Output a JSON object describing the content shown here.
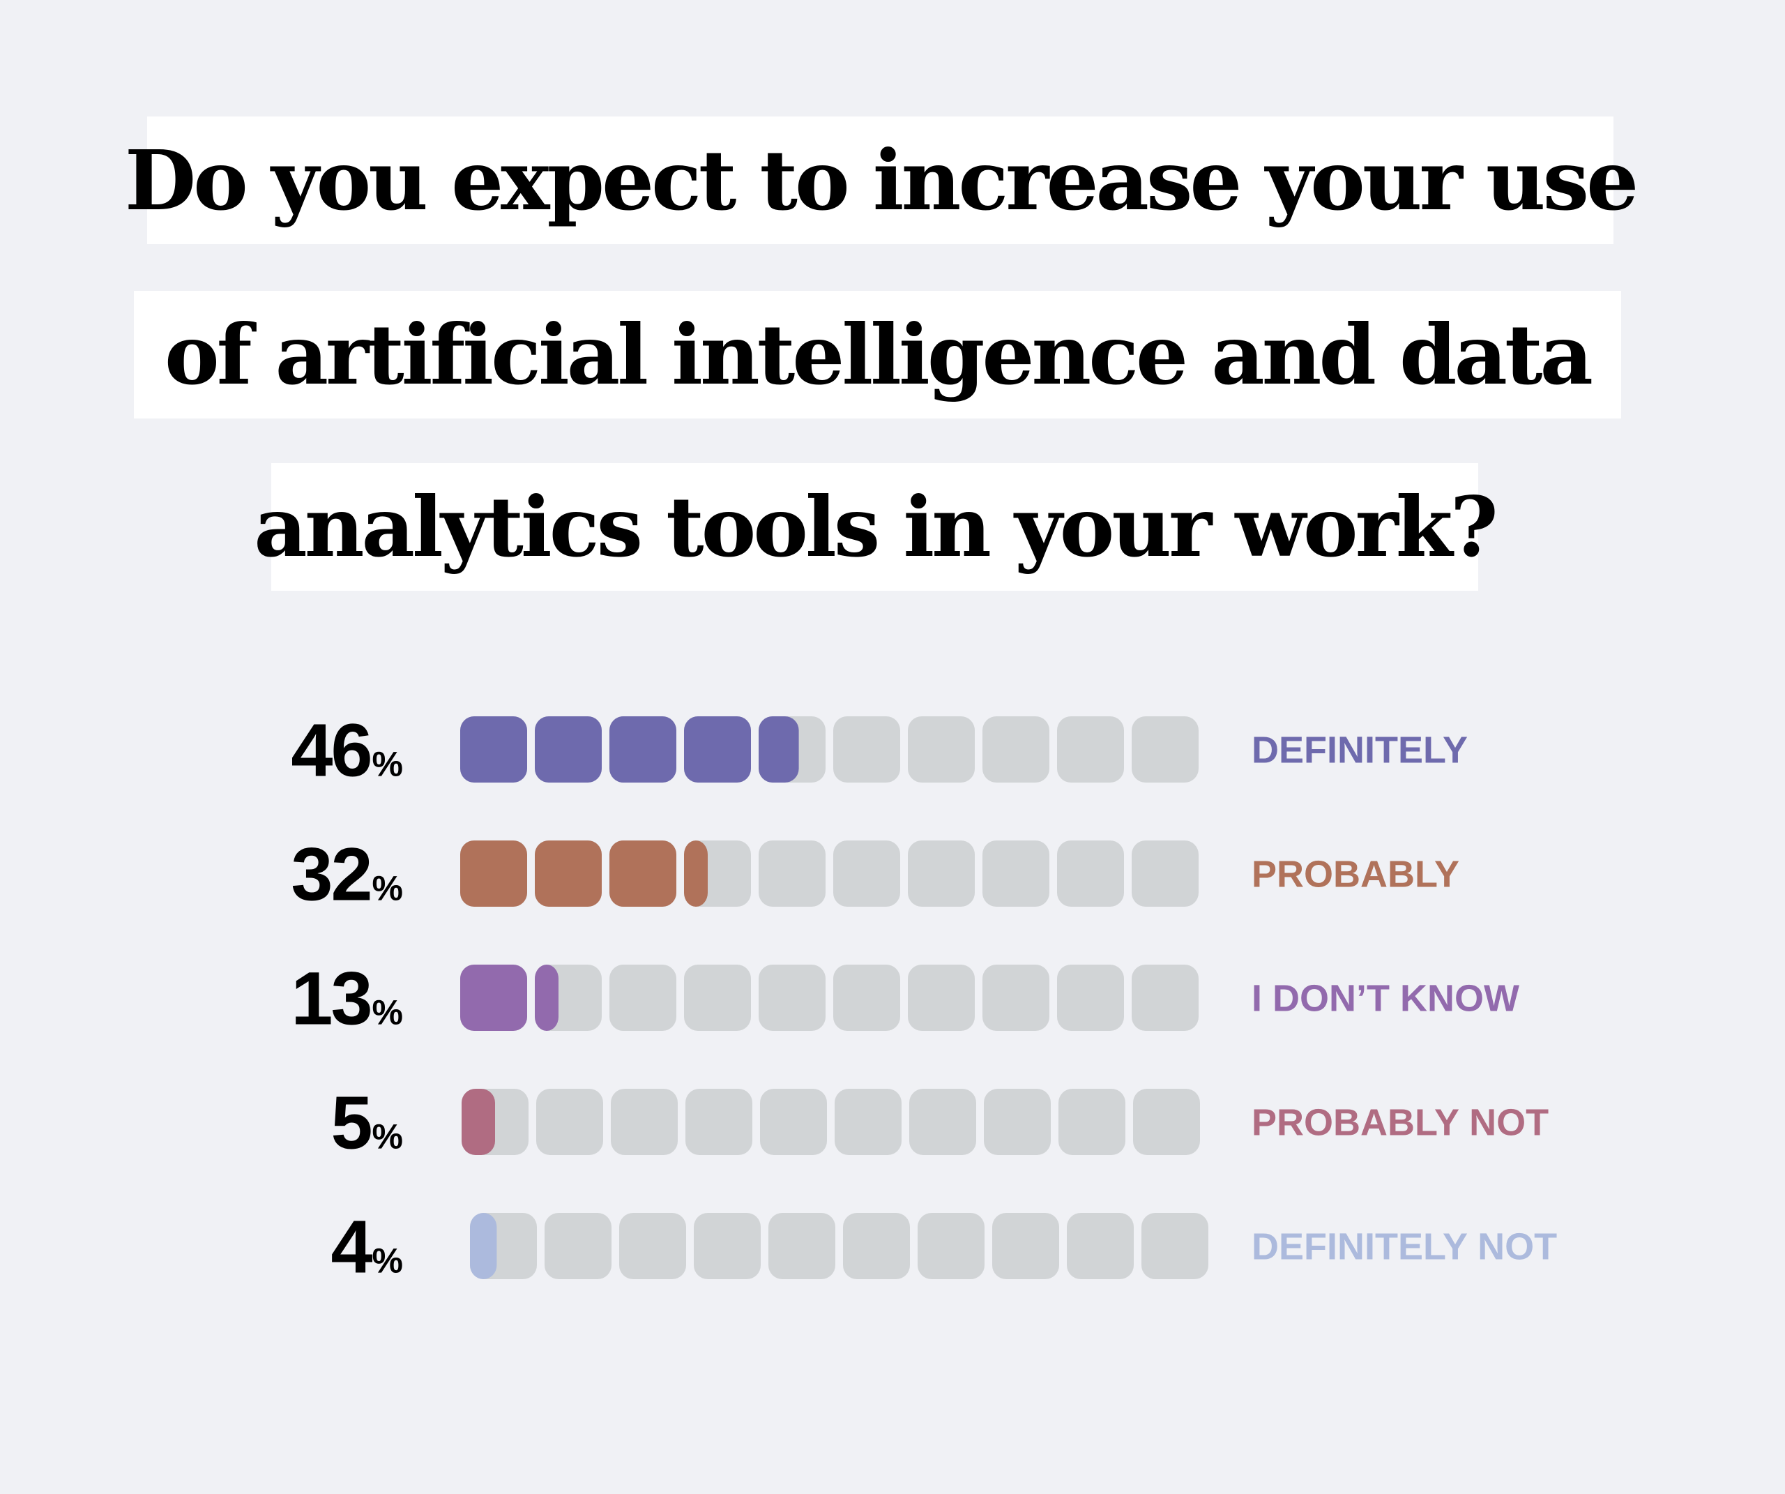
{
  "title_lines": [
    "Do you expect to increase your use",
    "of artificial intelligence and data",
    "analytics tools in your work?"
  ],
  "chart_data": {
    "type": "bar",
    "title": "Do you expect to increase your use of artificial intelligence and data analytics tools in your work?",
    "unit": "%",
    "ylim": [
      0,
      100
    ],
    "segments_per_bar": 10,
    "track_color": "#d1d4d6",
    "categories": [
      "DEFINITELY",
      "PROBABLY",
      "I DON’T KNOW",
      "PROBABLY NOT",
      "DEFINITELY NOT"
    ],
    "values": [
      46,
      32,
      13,
      5,
      4
    ],
    "colors": [
      "#6e6aad",
      "#b0725a",
      "#926aad",
      "#b06c82",
      "#acbadd"
    ]
  }
}
